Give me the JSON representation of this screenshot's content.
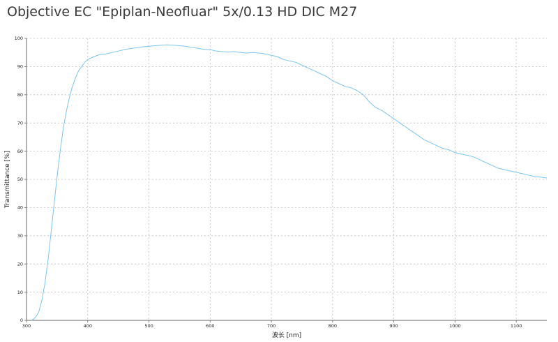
{
  "chart_data": {
    "type": "line",
    "title": "Objective EC \"Epiplan-Neofluar\" 5x/0.13 HD DIC M27",
    "xlabel": "波长 [nm]",
    "ylabel": "Transmittance [%]",
    "xlim": [
      300,
      1150
    ],
    "ylim": [
      0,
      100
    ],
    "xticks": [
      300,
      400,
      500,
      600,
      700,
      800,
      900,
      1000,
      1100
    ],
    "yticks": [
      0,
      10,
      20,
      30,
      40,
      50,
      60,
      70,
      80,
      90,
      100
    ],
    "grid": true,
    "colors": {
      "line": "#7cc4ee",
      "grid": "#bfbfbf",
      "axis": "#666666"
    },
    "series": [
      {
        "name": "",
        "x": [
          308,
          312,
          316,
          320,
          325,
          330,
          335,
          340,
          345,
          350,
          355,
          360,
          365,
          370,
          375,
          380,
          385,
          390,
          395,
          400,
          410,
          420,
          430,
          440,
          450,
          460,
          470,
          480,
          490,
          500,
          510,
          520,
          530,
          540,
          550,
          560,
          570,
          580,
          590,
          600,
          610,
          620,
          630,
          640,
          650,
          660,
          670,
          680,
          690,
          700,
          710,
          720,
          730,
          740,
          750,
          760,
          770,
          780,
          790,
          800,
          810,
          820,
          830,
          840,
          850,
          860,
          870,
          880,
          890,
          900,
          910,
          920,
          930,
          940,
          950,
          960,
          970,
          980,
          990,
          1000,
          1010,
          1020,
          1030,
          1040,
          1050,
          1060,
          1070,
          1080,
          1090,
          1100,
          1110,
          1120,
          1130,
          1140,
          1150
        ],
        "values": [
          0,
          0.5,
          1.5,
          3,
          7,
          13,
          21,
          31,
          41,
          51,
          60,
          68,
          74,
          79,
          83,
          86,
          88.5,
          90,
          91.5,
          92.5,
          93.5,
          94.3,
          94.5,
          95,
          95.5,
          96,
          96.4,
          96.7,
          97,
          97.2,
          97.4,
          97.6,
          97.7,
          97.6,
          97.4,
          97.2,
          96.8,
          96.5,
          96.1,
          96,
          95.5,
          95.3,
          95.2,
          95.3,
          95,
          94.8,
          95,
          94.8,
          94.5,
          94,
          93.5,
          92.5,
          92,
          91.5,
          90.5,
          89.5,
          88.5,
          87.5,
          86.5,
          85,
          84,
          83,
          82.5,
          81.5,
          80,
          77.5,
          75.5,
          74.5,
          73,
          71.5,
          70,
          68.5,
          67,
          65.5,
          64,
          63,
          62,
          61,
          60.5,
          59.5,
          59,
          58.5,
          58,
          57,
          56,
          55,
          54,
          53.5,
          53,
          52.5,
          52,
          51.5,
          51,
          50.8,
          50.5
        ]
      }
    ]
  }
}
